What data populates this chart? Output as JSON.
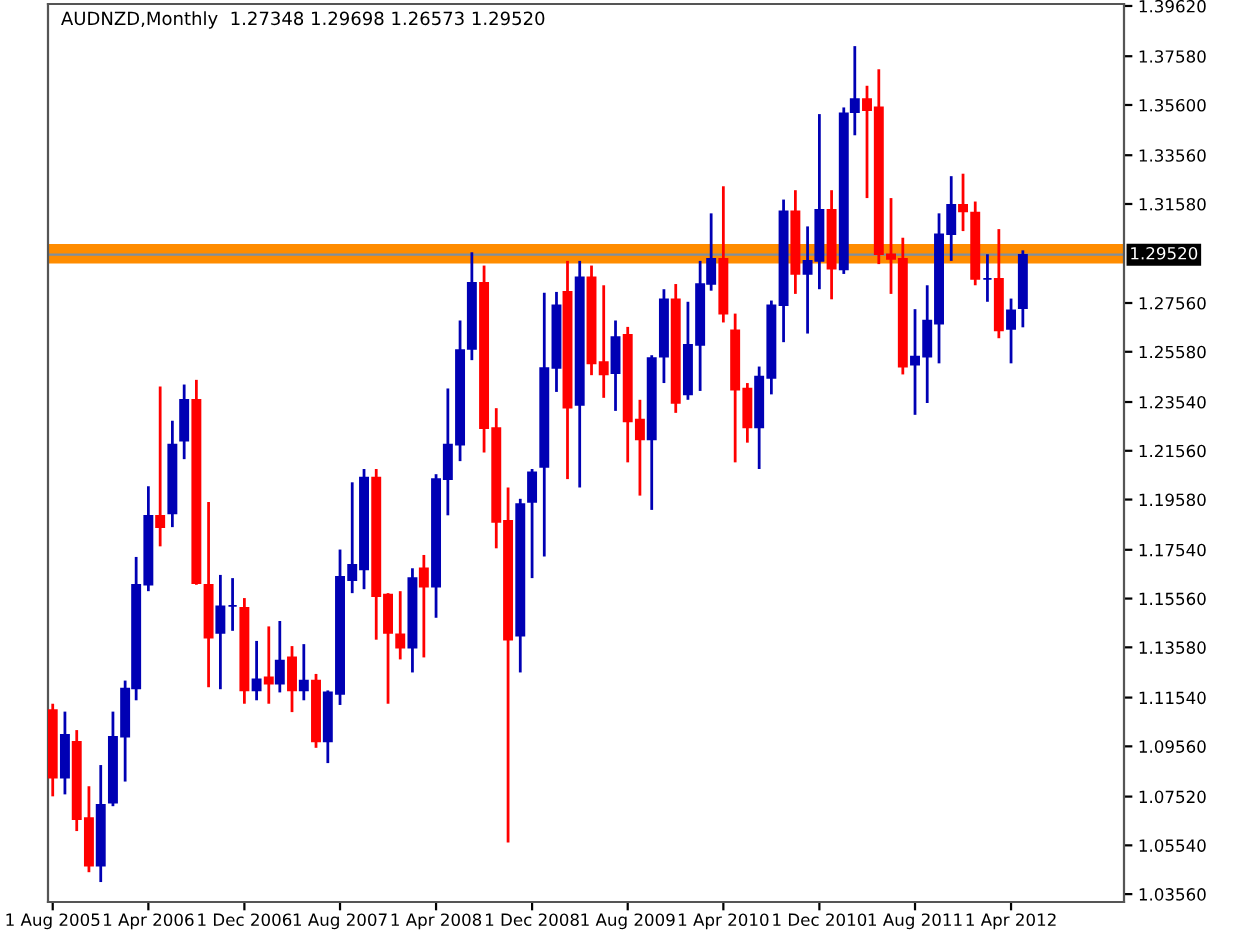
{
  "chart_data": {
    "type": "candlestick",
    "title": "AUDNZD,Monthly  1.27348 1.29698 1.26573 1.29520",
    "x": [
      "2005-08",
      "2005-09",
      "2005-10",
      "2005-11",
      "2005-12",
      "2006-01",
      "2006-02",
      "2006-03",
      "2006-04",
      "2006-05",
      "2006-06",
      "2006-07",
      "2006-08",
      "2006-09",
      "2006-10",
      "2006-11",
      "2006-12",
      "2007-01",
      "2007-02",
      "2007-03",
      "2007-04",
      "2007-05",
      "2007-06",
      "2007-07",
      "2007-08",
      "2007-09",
      "2007-10",
      "2007-11",
      "2007-12",
      "2008-01",
      "2008-02",
      "2008-03",
      "2008-04",
      "2008-05",
      "2008-06",
      "2008-07",
      "2008-08",
      "2008-09",
      "2008-10",
      "2008-11",
      "2008-12",
      "2009-01",
      "2009-02",
      "2009-03",
      "2009-04",
      "2009-05",
      "2009-06",
      "2009-07",
      "2009-08",
      "2009-09",
      "2009-10",
      "2009-11",
      "2009-12",
      "2010-01",
      "2010-02",
      "2010-03",
      "2010-04",
      "2010-05",
      "2010-06",
      "2010-07",
      "2010-08",
      "2010-09",
      "2010-10",
      "2010-11",
      "2010-12",
      "2011-01",
      "2011-02",
      "2011-03",
      "2011-04",
      "2011-05",
      "2011-06",
      "2011-07",
      "2011-08",
      "2011-09",
      "2011-10",
      "2011-11",
      "2011-12",
      "2012-01",
      "2012-02",
      "2012-03",
      "2012-04",
      "2012-05"
    ],
    "xlim": [
      "2005-07-20",
      "2013-01-13"
    ],
    "xticks": [
      {
        "value": "2005-08",
        "label": "1 Aug 2005"
      },
      {
        "value": "2006-04",
        "label": "1 Apr 2006"
      },
      {
        "value": "2006-12",
        "label": "1 Dec 2006"
      },
      {
        "value": "2007-08",
        "label": "1 Aug 2007"
      },
      {
        "value": "2008-04",
        "label": "1 Apr 2008"
      },
      {
        "value": "2008-12",
        "label": "1 Dec 2008"
      },
      {
        "value": "2009-08",
        "label": "1 Aug 2009"
      },
      {
        "value": "2010-04",
        "label": "1 Apr 2010"
      },
      {
        "value": "2010-12",
        "label": "1 Dec 2010"
      },
      {
        "value": "2011-08",
        "label": "1 Aug 2011"
      },
      {
        "value": "2012-04",
        "label": "1 Apr 2012"
      }
    ],
    "ohlc": [
      [
        1.1103,
        1.1129,
        1.0753,
        1.0829
      ],
      [
        1.0829,
        1.1097,
        1.0761,
        1.1003
      ],
      [
        1.0974,
        1.1022,
        1.0612,
        1.066
      ],
      [
        1.0665,
        1.0794,
        1.0445,
        1.0472
      ],
      [
        1.0472,
        1.088,
        1.0405,
        1.0719
      ],
      [
        1.0727,
        1.1097,
        1.0713,
        1.0995
      ],
      [
        1.0995,
        1.1223,
        1.0813,
        1.1191
      ],
      [
        1.1191,
        1.1725,
        1.1143,
        1.1612
      ],
      [
        1.1612,
        1.2012,
        1.1586,
        1.1892
      ],
      [
        1.1892,
        1.2417,
        1.1768,
        1.1846
      ],
      [
        1.1902,
        1.2278,
        1.1846,
        1.2181
      ],
      [
        1.2197,
        1.2425,
        1.2122,
        1.2363
      ],
      [
        1.2363,
        1.2444,
        1.1612,
        1.1618
      ],
      [
        1.1612,
        1.1948,
        1.1196,
        1.1397
      ],
      [
        1.1417,
        1.1652,
        1.1188,
        1.1524
      ],
      [
        1.1526,
        1.1639,
        1.1425,
        1.1526
      ],
      [
        1.1518,
        1.1558,
        1.1129,
        1.1183
      ],
      [
        1.1183,
        1.1384,
        1.1143,
        1.1228
      ],
      [
        1.1236,
        1.1443,
        1.1129,
        1.121
      ],
      [
        1.121,
        1.1465,
        1.1175,
        1.1304
      ],
      [
        1.1317,
        1.1363,
        1.1095,
        1.1183
      ],
      [
        1.1183,
        1.1371,
        1.1143,
        1.1223
      ],
      [
        1.1223,
        1.125,
        1.095,
        1.0976
      ],
      [
        1.0976,
        1.1183,
        1.0888,
        1.1175
      ],
      [
        1.1169,
        1.1755,
        1.1124,
        1.1644
      ],
      [
        1.1631,
        1.2028,
        1.1578,
        1.1693
      ],
      [
        1.1674,
        1.2082,
        1.1594,
        1.2047
      ],
      [
        1.2047,
        1.2082,
        1.1389,
        1.1566
      ],
      [
        1.1572,
        1.1578,
        1.1129,
        1.1417
      ],
      [
        1.1411,
        1.1586,
        1.1309,
        1.1357
      ],
      [
        1.1357,
        1.1679,
        1.1256,
        1.1639
      ],
      [
        1.1679,
        1.1733,
        1.1317,
        1.1604
      ],
      [
        1.1604,
        1.2061,
        1.1478,
        1.2041
      ],
      [
        1.2041,
        1.2409,
        1.1894,
        1.2181
      ],
      [
        1.2181,
        1.2685,
        1.2114,
        1.2565
      ],
      [
        1.257,
        1.2962,
        1.2524,
        1.2838
      ],
      [
        1.2838,
        1.2908,
        1.2149,
        1.2248
      ],
      [
        1.2248,
        1.2329,
        1.176,
        1.1867
      ],
      [
        1.1872,
        1.2007,
        1.0566,
        1.1389
      ],
      [
        1.1405,
        1.1961,
        1.1256,
        1.194
      ],
      [
        1.1948,
        1.2082,
        1.1639,
        1.2069
      ],
      [
        1.209,
        1.2798,
        1.1727,
        1.2492
      ],
      [
        1.2492,
        1.2801,
        1.2395,
        1.2747
      ],
      [
        1.2801,
        1.2927,
        1.2041,
        1.2331
      ],
      [
        1.2342,
        1.2927,
        1.2007,
        1.286
      ],
      [
        1.286,
        1.2908,
        1.2463,
        1.2511
      ],
      [
        1.2516,
        1.2828,
        1.2371,
        1.2466
      ],
      [
        1.2471,
        1.2685,
        1.2318,
        1.2618
      ],
      [
        1.2627,
        1.2659,
        1.2109,
        1.2275
      ],
      [
        1.2283,
        1.2363,
        1.1974,
        1.2202
      ],
      [
        1.2202,
        1.2544,
        1.1916,
        1.2532
      ],
      [
        1.2538,
        1.2812,
        1.2431,
        1.2771
      ],
      [
        1.2771,
        1.2833,
        1.231,
        1.235
      ],
      [
        1.2385,
        1.2761,
        1.2363,
        1.2586
      ],
      [
        1.2586,
        1.2927,
        1.2399,
        1.2833
      ],
      [
        1.2833,
        1.312,
        1.2806,
        1.2935
      ],
      [
        1.2935,
        1.323,
        1.2677,
        1.2713
      ],
      [
        1.2645,
        1.2713,
        1.2109,
        1.2404
      ],
      [
        1.2409,
        1.2431,
        1.2189,
        1.2251
      ],
      [
        1.2251,
        1.2498,
        1.2082,
        1.2457
      ],
      [
        1.2452,
        1.2766,
        1.2385,
        1.2747
      ],
      [
        1.2747,
        1.3176,
        1.2597,
        1.3128
      ],
      [
        1.3128,
        1.3214,
        1.2793,
        1.2874
      ],
      [
        1.2874,
        1.3067,
        1.2632,
        1.2927
      ],
      [
        1.2927,
        1.3523,
        1.2812,
        1.3134
      ],
      [
        1.3134,
        1.3214,
        1.2771,
        1.2895
      ],
      [
        1.2892,
        1.355,
        1.2874,
        1.3526
      ],
      [
        1.3531,
        1.3799,
        1.3437,
        1.3584
      ],
      [
        1.3584,
        1.3638,
        1.3182,
        1.3539
      ],
      [
        1.355,
        1.3705,
        1.2914,
        1.2954
      ],
      [
        1.2954,
        1.3182,
        1.2793,
        1.2935
      ],
      [
        1.2935,
        1.3021,
        1.2466,
        1.2498
      ],
      [
        1.2506,
        1.2731,
        1.2302,
        1.2538
      ],
      [
        1.2538,
        1.2828,
        1.235,
        1.2685
      ],
      [
        1.2672,
        1.312,
        1.2511,
        1.3035
      ],
      [
        1.3035,
        1.3271,
        1.2927,
        1.3155
      ],
      [
        1.3155,
        1.3281,
        1.3048,
        1.3128
      ],
      [
        1.3123,
        1.3168,
        1.2828,
        1.2854
      ],
      [
        1.2854,
        1.2954,
        1.2761,
        1.2854
      ],
      [
        1.2854,
        1.3056,
        1.2613,
        1.2645
      ],
      [
        1.2651,
        1.2774,
        1.2511,
        1.2726
      ],
      [
        1.27348,
        1.29698,
        1.26573,
        1.2952
      ]
    ],
    "ylim": [
      1.0324,
      1.397
    ],
    "yticks": [
      {
        "value": 1.3962,
        "label": "1.39620"
      },
      {
        "value": 1.3758,
        "label": "1.37580"
      },
      {
        "value": 1.356,
        "label": "1.35600"
      },
      {
        "value": 1.3356,
        "label": "1.33560"
      },
      {
        "value": 1.3158,
        "label": "1.31580"
      },
      {
        "value": 1.2756,
        "label": "1.27560"
      },
      {
        "value": 1.2558,
        "label": "1.25580"
      },
      {
        "value": 1.2354,
        "label": "1.23540"
      },
      {
        "value": 1.2156,
        "label": "1.21560"
      },
      {
        "value": 1.1958,
        "label": "1.19580"
      },
      {
        "value": 1.1754,
        "label": "1.17540"
      },
      {
        "value": 1.1556,
        "label": "1.15560"
      },
      {
        "value": 1.1358,
        "label": "1.13580"
      },
      {
        "value": 1.1154,
        "label": "1.11540"
      },
      {
        "value": 1.0956,
        "label": "1.09560"
      },
      {
        "value": 1.0752,
        "label": "1.07520"
      },
      {
        "value": 1.0554,
        "label": "1.05540"
      },
      {
        "value": 1.0356,
        "label": "1.03560"
      }
    ],
    "ref_lines": [
      {
        "axis": "y",
        "value": 1.2952,
        "label": "1.29520",
        "color": "#7f8f9f"
      }
    ],
    "bands": [
      {
        "axis": "y",
        "from": 1.2916,
        "to": 1.2996,
        "color": "#ff8c00"
      }
    ],
    "grid": false
  }
}
